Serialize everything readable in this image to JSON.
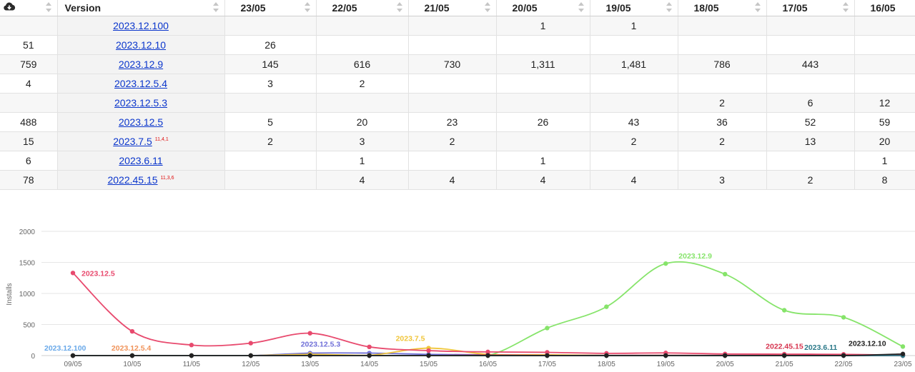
{
  "table": {
    "header": {
      "icon": "cloud-download-icon",
      "version_label": "Version",
      "dates": [
        "23/05",
        "22/05",
        "21/05",
        "20/05",
        "19/05",
        "18/05",
        "17/05",
        "16/05"
      ]
    },
    "rows": [
      {
        "total": "",
        "version": "2023.12.100",
        "sup": "",
        "cells": [
          "",
          "",
          "",
          "1",
          "1",
          "",
          "",
          ""
        ]
      },
      {
        "total": "51",
        "version": "2023.12.10",
        "sup": "",
        "cells": [
          "26",
          "",
          "",
          "",
          "",
          "",
          "",
          ""
        ]
      },
      {
        "total": "759",
        "version": "2023.12.9",
        "sup": "",
        "cells": [
          "145",
          "616",
          "730",
          "1,311",
          "1,481",
          "786",
          "443",
          ""
        ]
      },
      {
        "total": "4",
        "version": "2023.12.5.4",
        "sup": "",
        "cells": [
          "3",
          "2",
          "",
          "",
          "",
          "",
          "",
          ""
        ]
      },
      {
        "total": "",
        "version": "2023.12.5.3",
        "sup": "",
        "cells": [
          "",
          "",
          "",
          "",
          "",
          "2",
          "6",
          "12"
        ]
      },
      {
        "total": "488",
        "version": "2023.12.5",
        "sup": "",
        "cells": [
          "5",
          "20",
          "23",
          "26",
          "43",
          "36",
          "52",
          "59"
        ]
      },
      {
        "total": "15",
        "version": "2023.7.5",
        "sup": "11,4,1",
        "cells": [
          "2",
          "3",
          "2",
          "",
          "2",
          "2",
          "13",
          "20"
        ]
      },
      {
        "total": "6",
        "version": "2023.6.11",
        "sup": "",
        "cells": [
          "",
          "1",
          "",
          "1",
          "",
          "",
          "",
          "1"
        ]
      },
      {
        "total": "78",
        "version": "2022.45.15",
        "sup": "11,3,6",
        "cells": [
          "",
          "4",
          "4",
          "4",
          "4",
          "3",
          "2",
          "8"
        ]
      }
    ]
  },
  "chart_data": {
    "type": "line",
    "ylabel": "Installs",
    "ylim": [
      0,
      2000
    ],
    "yticks": [
      "0",
      "500",
      "1000",
      "1500",
      "2000"
    ],
    "categories": [
      "09/05",
      "10/05",
      "11/05",
      "12/05",
      "13/05",
      "14/05",
      "15/05",
      "16/05",
      "17/05",
      "18/05",
      "19/05",
      "20/05",
      "21/05",
      "22/05",
      "23/05"
    ],
    "grid": true,
    "series": [
      {
        "name": "2023.12.100",
        "color": "#6aa9e9",
        "values": [
          0,
          0,
          0,
          0,
          0,
          0,
          0,
          0,
          0,
          0,
          1,
          1,
          0,
          0,
          0
        ]
      },
      {
        "name": "2023.12.5.4",
        "color": "#f0935a",
        "values": [
          0,
          0,
          0,
          0,
          0,
          0,
          0,
          0,
          0,
          0,
          0,
          0,
          0,
          2,
          3
        ]
      },
      {
        "name": "2023.12.5.3",
        "color": "#6f6fd8",
        "values": [
          0,
          0,
          0,
          0,
          40,
          40,
          20,
          12,
          6,
          2,
          0,
          0,
          0,
          0,
          0
        ]
      },
      {
        "name": "2023.7.5",
        "color": "#f0c53a",
        "values": [
          0,
          0,
          0,
          0,
          20,
          5,
          120,
          20,
          13,
          2,
          2,
          0,
          2,
          3,
          2
        ]
      },
      {
        "name": "2023.12.9",
        "color": "#86e46a",
        "values": [
          0,
          0,
          0,
          0,
          0,
          0,
          0,
          0,
          443,
          786,
          1481,
          1311,
          730,
          616,
          145
        ]
      },
      {
        "name": "2023.12.5",
        "color": "#e84a6e",
        "values": [
          1330,
          390,
          170,
          200,
          360,
          140,
          80,
          59,
          52,
          36,
          43,
          26,
          23,
          20,
          5
        ]
      },
      {
        "name": "2022.45.15",
        "color": "#d6334e",
        "values": [
          0,
          0,
          0,
          0,
          0,
          0,
          0,
          8,
          2,
          3,
          4,
          4,
          4,
          4,
          0
        ]
      },
      {
        "name": "2023.6.11",
        "color": "#2d7a8a",
        "values": [
          0,
          0,
          0,
          0,
          0,
          0,
          0,
          1,
          0,
          0,
          0,
          1,
          0,
          1,
          0
        ]
      },
      {
        "name": "2023.12.10",
        "color": "#222222",
        "values": [
          0,
          0,
          0,
          0,
          0,
          0,
          0,
          0,
          0,
          0,
          0,
          0,
          0,
          0,
          26
        ]
      }
    ],
    "labels": [
      {
        "series": "2023.12.100",
        "text": "2023.12.100"
      },
      {
        "series": "2023.12.5.4",
        "text": "2023.12.5.4"
      },
      {
        "series": "2023.12.5.3",
        "text": "2023.12.5.3"
      },
      {
        "series": "2023.7.5",
        "text": "2023.7.5"
      },
      {
        "series": "2023.12.9",
        "text": "2023.12.9"
      },
      {
        "series": "2023.12.5",
        "text": "2023.12.5"
      },
      {
        "series": "2022.45.15",
        "text": "2022.45.15"
      },
      {
        "series": "2023.6.11",
        "text": "2023.6.11"
      },
      {
        "series": "2023.12.10",
        "text": "2023.12.10"
      }
    ]
  }
}
